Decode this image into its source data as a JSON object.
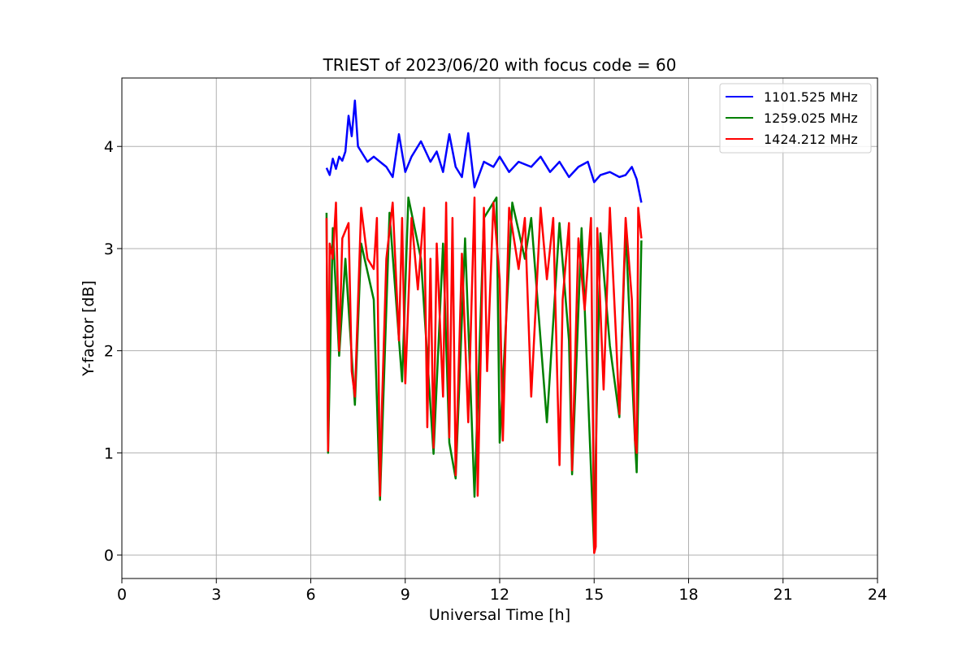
{
  "chart_data": {
    "type": "line",
    "title": "TRIEST of 2023/06/20 with focus code = 60",
    "xlabel": "Universal Time [h]",
    "ylabel": "Y-factor [dB]",
    "xlim": [
      0,
      24
    ],
    "ylim": [
      -0.23,
      4.67
    ],
    "xticks": [
      0,
      3,
      6,
      9,
      12,
      15,
      18,
      21,
      24
    ],
    "yticks": [
      0,
      1,
      2,
      3,
      4
    ],
    "grid": true,
    "legend_position": "top-right",
    "series": [
      {
        "name": "1101.525 MHz",
        "color": "#0000ff",
        "x": [
          6.5,
          6.6,
          6.7,
          6.8,
          6.9,
          7.0,
          7.1,
          7.2,
          7.3,
          7.4,
          7.5,
          7.6,
          7.8,
          8.0,
          8.2,
          8.4,
          8.6,
          8.8,
          9.0,
          9.2,
          9.5,
          9.8,
          10.0,
          10.2,
          10.4,
          10.6,
          10.8,
          11.0,
          11.2,
          11.5,
          11.8,
          12.0,
          12.3,
          12.6,
          13.0,
          13.3,
          13.6,
          13.9,
          14.2,
          14.5,
          14.8,
          15.0,
          15.2,
          15.5,
          15.8,
          16.0,
          16.2,
          16.35,
          16.5
        ],
        "y": [
          3.79,
          3.72,
          3.88,
          3.78,
          3.9,
          3.86,
          3.95,
          4.3,
          4.1,
          4.45,
          4.0,
          3.95,
          3.85,
          3.9,
          3.85,
          3.8,
          3.7,
          4.12,
          3.75,
          3.9,
          4.05,
          3.85,
          3.95,
          3.75,
          4.12,
          3.8,
          3.7,
          4.13,
          3.6,
          3.85,
          3.8,
          3.9,
          3.75,
          3.85,
          3.8,
          3.9,
          3.75,
          3.85,
          3.7,
          3.8,
          3.85,
          3.65,
          3.72,
          3.75,
          3.7,
          3.72,
          3.8,
          3.68,
          3.45
        ]
      },
      {
        "name": "1259.025 MHz",
        "color": "#008000",
        "x": [
          6.5,
          6.55,
          6.7,
          6.9,
          7.1,
          7.4,
          7.6,
          8.0,
          8.2,
          8.5,
          8.9,
          9.1,
          9.5,
          9.9,
          10.2,
          10.4,
          10.6,
          10.9,
          11.2,
          11.5,
          11.9,
          12.0,
          12.4,
          12.8,
          13.0,
          13.5,
          13.9,
          14.2,
          14.3,
          14.6,
          15.0,
          15.05,
          15.2,
          15.5,
          15.8,
          16.0,
          16.3,
          16.35,
          16.5
        ],
        "y": [
          3.35,
          1.0,
          3.2,
          1.95,
          2.9,
          1.47,
          3.05,
          2.5,
          0.54,
          3.35,
          1.7,
          3.5,
          2.9,
          0.99,
          3.05,
          1.1,
          0.75,
          3.1,
          0.57,
          3.3,
          3.5,
          1.1,
          3.45,
          2.9,
          3.3,
          1.3,
          3.25,
          2.1,
          0.79,
          3.2,
          0.03,
          0.96,
          3.15,
          2.05,
          1.35,
          3.2,
          1.1,
          0.81,
          3.08
        ]
      },
      {
        "name": "1424.212 MHz",
        "color": "#ff0000",
        "x": [
          6.5,
          6.55,
          6.6,
          6.7,
          6.8,
          6.9,
          7.0,
          7.2,
          7.3,
          7.4,
          7.6,
          7.8,
          8.0,
          8.1,
          8.2,
          8.25,
          8.4,
          8.6,
          8.8,
          8.9,
          9.0,
          9.2,
          9.4,
          9.6,
          9.7,
          9.8,
          9.9,
          10.0,
          10.2,
          10.3,
          10.4,
          10.5,
          10.6,
          10.8,
          11.0,
          11.2,
          11.3,
          11.5,
          11.6,
          11.8,
          12.0,
          12.1,
          12.3,
          12.6,
          12.8,
          13.0,
          13.3,
          13.5,
          13.7,
          13.9,
          14.0,
          14.2,
          14.3,
          14.5,
          14.7,
          14.9,
          15.0,
          15.05,
          15.1,
          15.3,
          15.5,
          15.7,
          15.8,
          16.0,
          16.2,
          16.3,
          16.35,
          16.4,
          16.5
        ],
        "y": [
          3.3,
          1.02,
          3.05,
          2.9,
          3.45,
          2.0,
          3.1,
          3.25,
          1.8,
          1.55,
          3.4,
          2.9,
          2.8,
          3.3,
          0.58,
          1.35,
          2.9,
          3.45,
          2.1,
          3.3,
          1.68,
          3.3,
          2.6,
          3.4,
          1.25,
          2.9,
          1.05,
          3.05,
          1.55,
          3.45,
          1.15,
          3.3,
          0.78,
          2.95,
          1.3,
          3.5,
          0.58,
          3.4,
          1.8,
          3.45,
          2.7,
          1.12,
          3.4,
          2.8,
          3.3,
          1.55,
          3.4,
          2.7,
          3.3,
          0.88,
          2.5,
          3.25,
          0.83,
          3.1,
          2.4,
          3.3,
          0.02,
          0.08,
          3.2,
          1.62,
          3.4,
          2.1,
          1.38,
          3.3,
          2.5,
          1.12,
          1.0,
          3.4,
          3.1
        ]
      }
    ]
  }
}
